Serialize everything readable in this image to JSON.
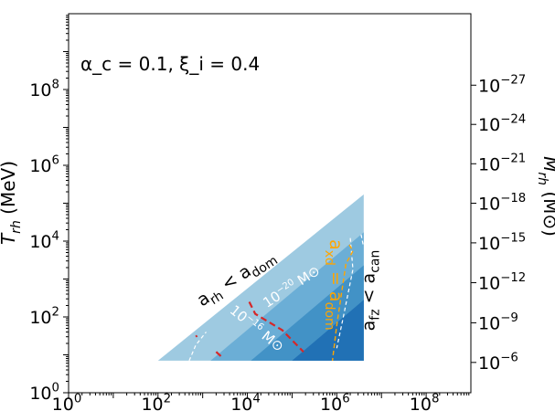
{
  "chart_data": {
    "type": "area",
    "annotation": "α_c = 0.1, ξ_i = 0.4",
    "ylabel_left": "T_rh (MeV)",
    "ylabel_right": "M_rh (M⊙)",
    "x_scale": "log",
    "y_scale": "log",
    "xlim": [
      1,
      1000000000.0
    ],
    "ylim": [
      1,
      10000000000.0
    ],
    "x_ticks": [
      {
        "value": 1,
        "base": "10",
        "exp": "0"
      },
      {
        "value": 100,
        "base": "10",
        "exp": "2"
      },
      {
        "value": 10000,
        "base": "10",
        "exp": "4"
      },
      {
        "value": 1000000,
        "base": "10",
        "exp": "6"
      },
      {
        "value": 100000000,
        "base": "10",
        "exp": "8"
      }
    ],
    "y_ticks": [
      {
        "value": 1,
        "base": "10",
        "exp": "0"
      },
      {
        "value": 100,
        "base": "10",
        "exp": "2"
      },
      {
        "value": 10000,
        "base": "10",
        "exp": "4"
      },
      {
        "value": 1000000,
        "base": "10",
        "exp": "6"
      },
      {
        "value": 100000000,
        "base": "10",
        "exp": "8"
      }
    ],
    "right_ticks": [
      {
        "value": 6.3,
        "base": "10",
        "exp": "−6"
      },
      {
        "value": 70,
        "base": "10",
        "exp": "−9"
      },
      {
        "value": 800,
        "base": "10",
        "exp": "−12"
      },
      {
        "value": 9000,
        "base": "10",
        "exp": "−15"
      },
      {
        "value": 100000,
        "base": "10",
        "exp": "−18"
      },
      {
        "value": 1100000,
        "base": "10",
        "exp": "−21"
      },
      {
        "value": 12000000,
        "base": "10",
        "exp": "−24"
      },
      {
        "value": 130000000,
        "base": "10",
        "exp": "−27"
      }
    ],
    "regions": [
      {
        "level": 1,
        "color": "#9ecae1",
        "poly": [
          [
            100,
            7
          ],
          [
            4000000,
            170000
          ],
          [
            4000000,
            7
          ]
        ]
      },
      {
        "level": 2,
        "color": "#6baed6",
        "poly": [
          [
            1500,
            7
          ],
          [
            4000000,
            17000
          ],
          [
            4000000,
            7
          ]
        ]
      },
      {
        "level": 3,
        "color": "#4292c6",
        "poly": [
          [
            12000,
            7
          ],
          [
            4000000,
            2300
          ],
          [
            4000000,
            7
          ]
        ]
      },
      {
        "level": 4,
        "color": "#2171b5",
        "poly": [
          [
            100000,
            7
          ],
          [
            4000000,
            280
          ],
          [
            4000000,
            7
          ]
        ]
      }
    ],
    "contour_labels": [
      {
        "text_base": "10",
        "text_exp": "−20",
        "text_unit": " M⊙",
        "x": 110000,
        "y": 500,
        "angle": -33
      },
      {
        "text_base": "10",
        "text_exp": "−16",
        "text_unit": " M⊙",
        "x": 14000,
        "y": 40,
        "angle": 39
      }
    ],
    "boundary_labels": [
      {
        "base": "a",
        "sub": "rh",
        "rel": " < ",
        "base2": "a",
        "sub2": "dom",
        "x": 6500,
        "y": 800,
        "angle": -33,
        "color": "#000000"
      },
      {
        "base": "a",
        "sub": "fz",
        "rel": " < ",
        "base2": "a",
        "sub2": "can",
        "x": 7000000,
        "y": 500,
        "angle": -90,
        "color": "#000000"
      },
      {
        "base": "a",
        "sub": "xd",
        "rel": " = ",
        "base2": "a",
        "sub2": "dom",
        "x": 700000,
        "y": 700,
        "angle": 90,
        "color": "#ffa500"
      }
    ],
    "lines": {
      "white_dashed": [
        [
          [
            2000000,
            12000
          ],
          [
            2300000,
            1800
          ],
          [
            1400000,
            100
          ],
          [
            1000000,
            15
          ]
        ],
        [
          [
            500,
            7
          ],
          [
            700,
            18
          ],
          [
            1200,
            40
          ]
        ],
        [
          [
            3500000,
            15000
          ],
          [
            3900000,
            8000
          ]
        ]
      ],
      "orange_dashed": [
        [
          [
            1900000,
            8000
          ],
          [
            2300000,
            5500
          ],
          [
            1600000,
            2500
          ],
          [
            1000000,
            60
          ],
          [
            800000,
            7
          ]
        ]
      ],
      "red_dashed": [
        [
          [
            11000,
            250
          ],
          [
            15000,
            120
          ],
          [
            60000,
            45
          ],
          [
            180000,
            12
          ]
        ],
        [
          [
            2000,
            12
          ],
          [
            2600,
            9
          ]
        ],
        [
          [
            700,
            30
          ],
          [
            750,
            32
          ]
        ]
      ]
    },
    "colors": {
      "axis": "#000000",
      "white_line": "#ffffff",
      "orange_line": "#ffa500",
      "red_line": "#d62728"
    }
  }
}
